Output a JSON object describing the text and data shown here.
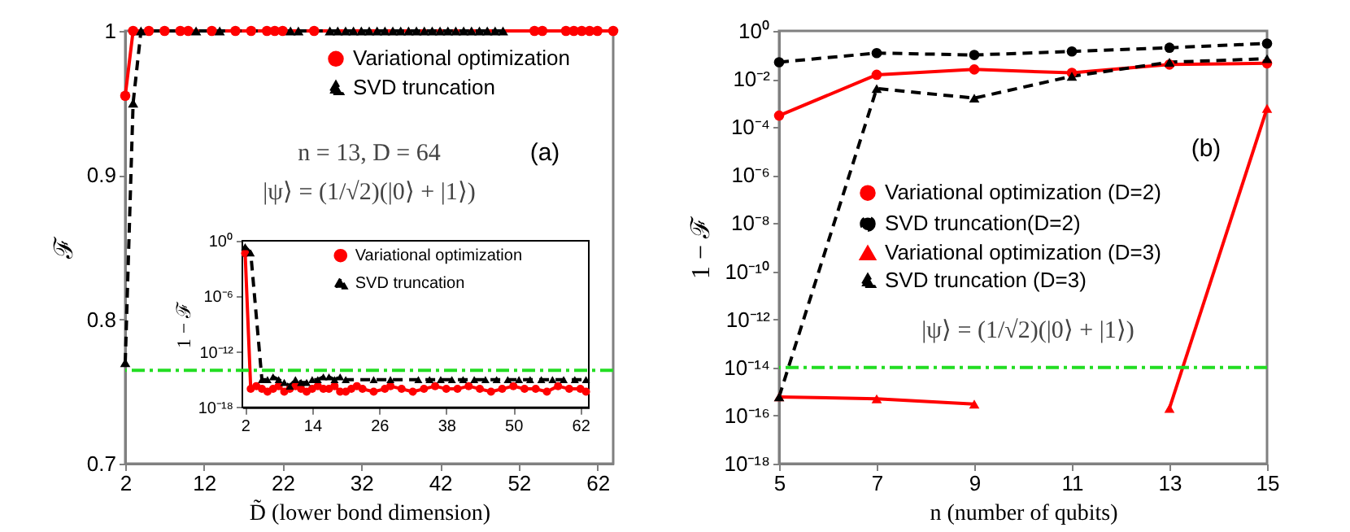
{
  "chart_data": [
    {
      "type": "line",
      "xlabel": "D̃ (lower bond dimension)",
      "ylabel": "ℱ",
      "xlim": [
        2,
        64
      ],
      "ylim": [
        0.7,
        1
      ],
      "xticks": [
        2,
        12,
        22,
        32,
        42,
        52,
        62
      ],
      "yticks": [
        0.7,
        0.8,
        0.9,
        1
      ],
      "legend": "top right",
      "annotations": [
        "n = 13, D = 64",
        "|ψ⟩ = (1/√2)(|0⟩ + |1⟩)",
        "(a)"
      ],
      "series": [
        {
          "name": "Variational optimization",
          "color": "#ff0000",
          "marker": "circle",
          "line_style": "solid",
          "x": [
            2,
            3,
            5,
            7,
            9,
            10,
            13,
            16,
            18,
            20,
            21,
            22,
            26,
            54,
            55,
            58,
            59,
            60,
            61,
            62,
            64
          ],
          "values": [
            0.955,
            1,
            1,
            1,
            1,
            1,
            1,
            1,
            1,
            1,
            1,
            1,
            1,
            1,
            1,
            1,
            1,
            1,
            1,
            1,
            1
          ]
        },
        {
          "name": "SVD truncation",
          "color": "#000000",
          "marker": "triangle",
          "line_style": "dashed",
          "x": [
            2,
            3,
            4,
            11,
            14,
            23,
            24,
            28,
            29,
            30,
            31,
            32,
            33,
            34,
            35,
            36,
            37,
            38,
            39,
            40,
            41,
            42,
            43,
            44,
            45,
            46,
            47,
            48,
            49,
            50
          ],
          "values": [
            0.77,
            0.95,
            1,
            1,
            1,
            1,
            1,
            1,
            1,
            1,
            1,
            1,
            1,
            1,
            1,
            1,
            1,
            1,
            1,
            1,
            1,
            1,
            1,
            1,
            1,
            1,
            1,
            1,
            1,
            1
          ]
        }
      ]
    },
    {
      "type": "line",
      "ylabel": "1 − ℱ",
      "log": true,
      "xlim": [
        1.5,
        63.5
      ],
      "ylim": [
        1e-18,
        1
      ],
      "xticks": [
        2,
        14,
        26,
        38,
        50,
        62
      ],
      "yticks": [
        {
          "value": 1,
          "label": "10⁰"
        },
        {
          "value": 1e-06,
          "label": "10⁻⁶"
        },
        {
          "value": 1e-12,
          "label": "10⁻¹²"
        },
        {
          "value": 1e-18,
          "label": "10⁻¹⁸"
        }
      ],
      "legend": "top right",
      "ref_lines": [
        {
          "axis": "y",
          "value": 1e-14,
          "color": "#22dd22",
          "line_style": "dashed"
        }
      ],
      "series": [
        {
          "name": "Variational optimization",
          "color": "#ff0000",
          "marker": "circle",
          "line_style": "solid",
          "x": [
            2,
            3,
            4,
            5,
            6,
            7,
            8,
            9,
            10,
            11,
            12,
            13,
            14,
            15,
            16,
            17,
            18,
            19,
            20,
            21,
            22,
            23,
            25,
            27,
            28,
            30,
            32,
            34,
            36,
            38,
            40,
            42,
            44,
            46,
            48,
            50,
            52,
            54,
            56,
            58,
            60,
            62,
            63
          ],
          "values": [
            0.045,
            1e-16,
            2e-16,
            1e-16,
            5e-17,
            1e-16,
            2e-16,
            5e-17,
            1e-16,
            2e-16,
            1e-16,
            5e-17,
            1e-16,
            2e-16,
            1e-16,
            1e-16,
            2e-16,
            5e-17,
            5e-17,
            1e-16,
            2e-16,
            1e-16,
            5e-17,
            1e-16,
            2e-16,
            1e-16,
            5e-17,
            1e-16,
            2e-16,
            1e-16,
            1e-16,
            2e-16,
            1e-16,
            5e-17,
            1e-16,
            2e-16,
            1e-16,
            1e-16,
            5e-17,
            2e-16,
            1e-16,
            1e-16,
            5e-17
          ]
        },
        {
          "name": "SVD truncation",
          "color": "#000000",
          "marker": "triangle",
          "line_style": "dashed",
          "x": [
            2,
            3,
            5,
            6,
            7,
            8,
            9,
            10,
            11,
            12,
            13,
            14,
            15,
            16,
            17,
            18,
            19,
            20,
            25,
            28,
            33,
            35,
            37,
            39,
            41,
            43,
            45,
            47,
            49,
            51,
            53,
            55,
            57,
            59,
            61,
            63
          ],
          "values": [
            0.23,
            0.05,
            1e-15,
            1e-15,
            2e-15,
            1e-15,
            5e-16,
            2e-16,
            1e-15,
            5e-16,
            5e-16,
            1e-15,
            1e-15,
            2e-15,
            2e-15,
            1e-15,
            2e-15,
            1e-15,
            1e-15,
            1e-15,
            1e-15,
            1e-15,
            1e-15,
            1e-15,
            1e-15,
            1e-15,
            1e-15,
            1e-15,
            1e-15,
            1e-15,
            1e-15,
            1e-15,
            1e-15,
            1e-15,
            1e-15,
            1e-15
          ]
        }
      ]
    },
    {
      "type": "line",
      "xlabel": "n (number of qubits)",
      "ylabel": "1 − ℱ",
      "log": true,
      "xlim": [
        5,
        15
      ],
      "ylim": [
        1e-18,
        1
      ],
      "xticks": [
        5,
        7,
        9,
        11,
        13,
        15
      ],
      "yticks": [
        {
          "value": 1,
          "label": "10⁰"
        },
        {
          "value": 0.01,
          "label": "10⁻²"
        },
        {
          "value": 0.0001,
          "label": "10⁻⁴"
        },
        {
          "value": 1e-06,
          "label": "10⁻⁶"
        },
        {
          "value": 1e-08,
          "label": "10⁻⁸"
        },
        {
          "value": 1e-10,
          "label": "10⁻¹⁰"
        },
        {
          "value": 1e-12,
          "label": "10⁻¹²"
        },
        {
          "value": 1e-14,
          "label": "10⁻¹⁴"
        },
        {
          "value": 1e-16,
          "label": "10⁻¹⁶"
        },
        {
          "value": 1e-18,
          "label": "10⁻¹⁸"
        }
      ],
      "legend": "left",
      "annotations": [
        "(b)",
        "|ψ⟩ = (1/√2)(|0⟩ + |1⟩)"
      ],
      "ref_lines": [
        {
          "axis": "y",
          "value": 1e-14,
          "color": "#22dd22",
          "line_style": "dashed"
        }
      ],
      "x": [
        5,
        7,
        9,
        11,
        13,
        15
      ],
      "series": [
        {
          "name": "Variational optimization (D=2)",
          "color": "#ff0000",
          "marker": "circle",
          "line_style": "solid",
          "values": [
            0.0003,
            0.015,
            0.025,
            0.018,
            0.04,
            0.045
          ]
        },
        {
          "name": "SVD truncation(D=2)",
          "color": "#000000",
          "marker": "circle",
          "line_style": "dashed",
          "values": [
            0.05,
            0.12,
            0.1,
            0.14,
            0.2,
            0.3
          ]
        },
        {
          "name": "Variational optimization (D=3)",
          "color": "#ff0000",
          "marker": "triangle",
          "line_style": "solid",
          "values": [
            6e-16,
            5e-16,
            3e-16,
            null,
            2e-16,
            0.0006
          ]
        },
        {
          "name": "SVD truncation (D=3)",
          "color": "#000000",
          "marker": "triangle",
          "line_style": "dashed",
          "values": [
            6e-16,
            0.004,
            0.0016,
            0.013,
            0.05,
            0.07
          ]
        }
      ]
    }
  ]
}
